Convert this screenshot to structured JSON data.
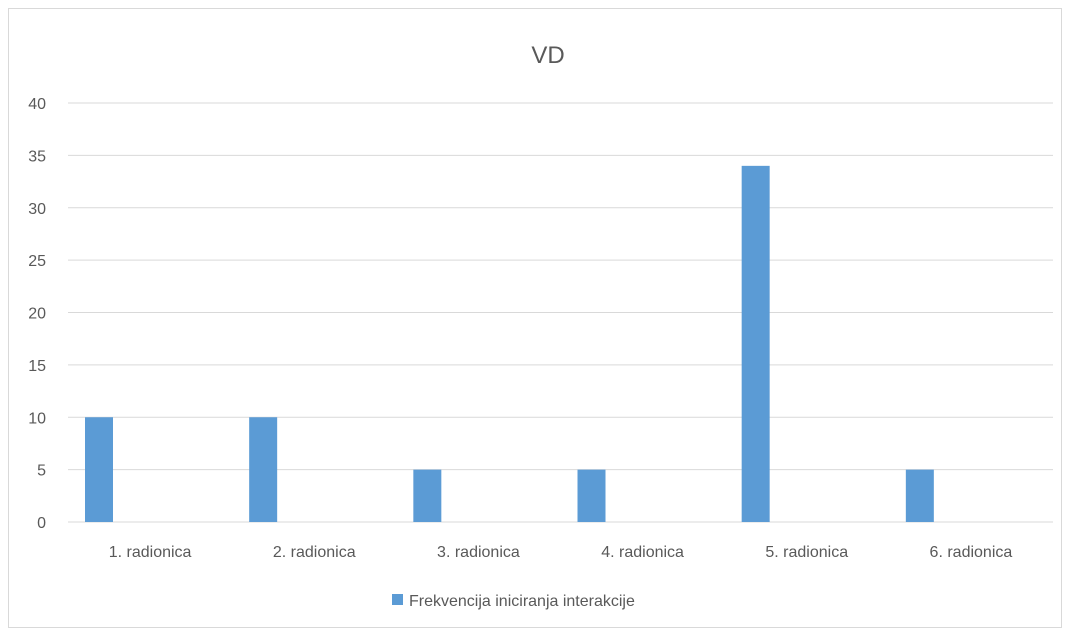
{
  "chart_data": {
    "type": "bar",
    "title": "VD",
    "xlabel": "",
    "ylabel": "",
    "categories": [
      "1. radionica",
      "2. radionica",
      "3. radionica",
      "4. radionica",
      "5. radionica",
      "6. radionica"
    ],
    "series": [
      {
        "name": "Frekvencija iniciranja interakcije",
        "values": [
          10,
          10,
          5,
          5,
          34,
          5
        ],
        "color": "#5b9bd5"
      }
    ],
    "ylim": [
      0,
      40
    ],
    "yticks": [
      0,
      5,
      10,
      15,
      20,
      25,
      30,
      35,
      40
    ],
    "grid": true,
    "legend_position": "bottom"
  }
}
